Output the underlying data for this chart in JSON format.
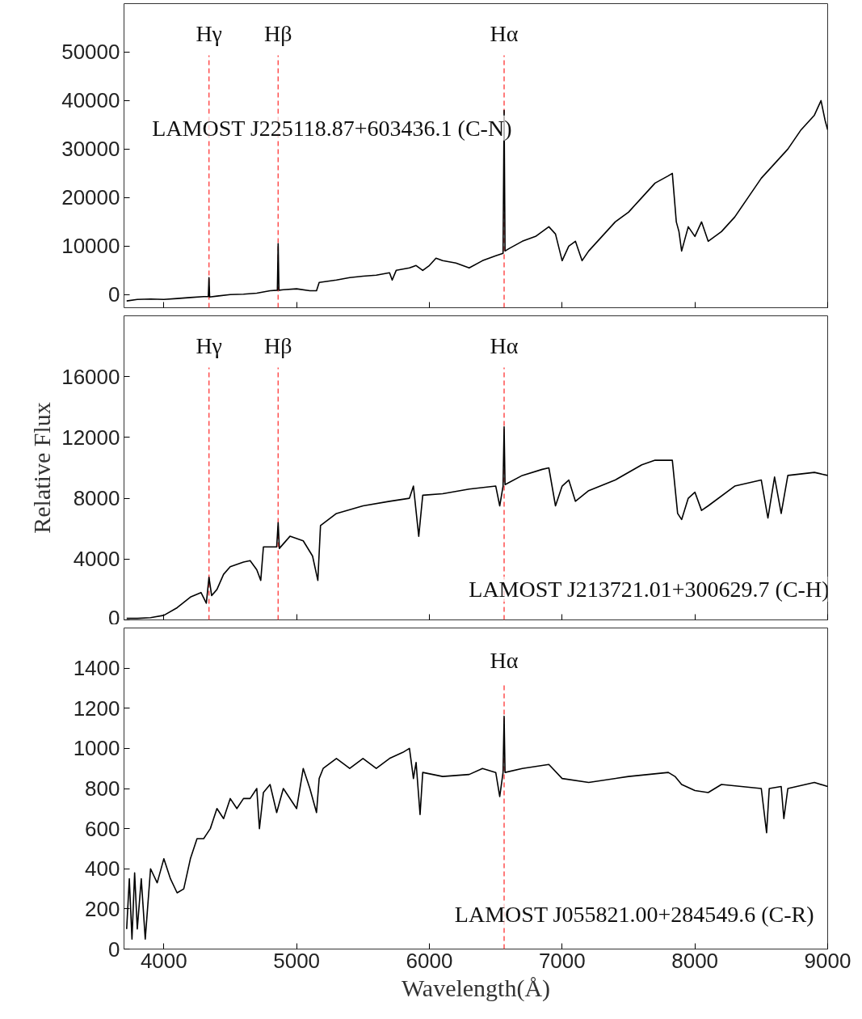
{
  "chart_data": [
    {
      "type": "line",
      "color": "#000000",
      "xlim": [
        3700,
        9000
      ],
      "ylim": [
        -2700,
        60000
      ],
      "yticks": [
        0,
        10000,
        20000,
        30000,
        40000,
        50000
      ],
      "xticks": [
        4000,
        5000,
        6000,
        7000,
        8000,
        9000
      ],
      "tick_labels": "y",
      "grid": false,
      "x": [
        3720,
        3800,
        3900,
        4000,
        4100,
        4200,
        4300,
        4335,
        4340,
        4345,
        4400,
        4500,
        4600,
        4700,
        4800,
        4855,
        4861,
        4867,
        4900,
        5000,
        5100,
        5150,
        5170,
        5300,
        5400,
        5500,
        5600,
        5700,
        5720,
        5750,
        5850,
        5900,
        5950,
        6000,
        6050,
        6100,
        6200,
        6300,
        6400,
        6500,
        6555,
        6563,
        6570,
        6600,
        6700,
        6800,
        6900,
        6950,
        7000,
        7050,
        7100,
        7150,
        7200,
        7300,
        7400,
        7500,
        7600,
        7700,
        7800,
        7830,
        7860,
        7880,
        7900,
        7950,
        8000,
        8050,
        8100,
        8200,
        8300,
        8400,
        8500,
        8600,
        8700,
        8800,
        8900,
        8950,
        8980,
        9000
      ],
      "values": [
        -1300,
        -1000,
        -900,
        -1000,
        -800,
        -600,
        -400,
        -400,
        3500,
        -500,
        -300,
        0,
        100,
        300,
        800,
        900,
        10500,
        900,
        1000,
        1200,
        800,
        800,
        2500,
        3000,
        3500,
        3800,
        4000,
        4500,
        3000,
        5000,
        5500,
        6000,
        5000,
        6000,
        7500,
        7000,
        6500,
        5500,
        7000,
        8000,
        8500,
        38000,
        9000,
        9500,
        11000,
        12000,
        14000,
        12500,
        7000,
        10000,
        11000,
        7000,
        9000,
        12000,
        15000,
        17000,
        20000,
        23000,
        24500,
        25000,
        15000,
        13000,
        9000,
        14000,
        12000,
        15000,
        11000,
        13000,
        16000,
        20000,
        24000,
        27000,
        30000,
        34000,
        37000,
        40000,
        36000,
        34000
      ],
      "ref_lines": [
        {
          "axis": "x",
          "value": 4340,
          "label": "Hγ",
          "color": "#ff4d4d",
          "line_style": "dashed"
        },
        {
          "axis": "x",
          "value": 4861,
          "label": "Hβ",
          "color": "#ff4d4d",
          "line_style": "dashed"
        },
        {
          "axis": "x",
          "value": 6563,
          "label": "Hα",
          "color": "#ff4d4d",
          "line_style": "dashed"
        }
      ],
      "annotations": [
        "LAMOST J225118.87+603436.1 (C-N)"
      ]
    },
    {
      "type": "line",
      "color": "#000000",
      "xlim": [
        3700,
        9000
      ],
      "ylim": [
        0,
        20000
      ],
      "yticks": [
        0,
        4000,
        8000,
        12000,
        16000
      ],
      "xticks": [
        4000,
        5000,
        6000,
        7000,
        8000,
        9000
      ],
      "tick_labels": "y",
      "grid": false,
      "ylabel": "Relative Flux",
      "x": [
        3720,
        3800,
        3900,
        4000,
        4100,
        4200,
        4280,
        4320,
        4340,
        4360,
        4400,
        4450,
        4500,
        4600,
        4650,
        4700,
        4730,
        4750,
        4850,
        4861,
        4870,
        4950,
        5050,
        5120,
        5160,
        5180,
        5300,
        5500,
        5700,
        5850,
        5880,
        5920,
        5950,
        6100,
        6300,
        6500,
        6530,
        6555,
        6563,
        6570,
        6700,
        6850,
        6900,
        6950,
        7000,
        7050,
        7100,
        7200,
        7400,
        7600,
        7700,
        7830,
        7870,
        7900,
        7950,
        8000,
        8050,
        8100,
        8300,
        8500,
        8550,
        8600,
        8650,
        8700,
        8900,
        9000
      ],
      "values": [
        100,
        100,
        150,
        300,
        800,
        1500,
        1800,
        1100,
        2800,
        1600,
        2000,
        3000,
        3500,
        3800,
        3900,
        3300,
        2600,
        4800,
        4800,
        6400,
        4700,
        5500,
        5200,
        4200,
        2600,
        6200,
        7000,
        7500,
        7800,
        8000,
        8800,
        5500,
        8200,
        8300,
        8600,
        8800,
        7500,
        8800,
        12700,
        8900,
        9500,
        9900,
        10000,
        7500,
        8800,
        9200,
        7800,
        8500,
        9200,
        10200,
        10500,
        10500,
        7000,
        6600,
        8000,
        8400,
        7200,
        7500,
        8800,
        9200,
        6700,
        9400,
        7000,
        9500,
        9700,
        9500
      ],
      "ref_lines": [
        {
          "axis": "x",
          "value": 4340,
          "label": "Hγ",
          "color": "#ff4d4d",
          "line_style": "dashed"
        },
        {
          "axis": "x",
          "value": 4861,
          "label": "Hβ",
          "color": "#ff4d4d",
          "line_style": "dashed"
        },
        {
          "axis": "x",
          "value": 6563,
          "label": "Hα",
          "color": "#ff4d4d",
          "line_style": "dashed"
        }
      ],
      "annotations": [
        "LAMOST J213721.01+300629.7 (C-H)"
      ]
    },
    {
      "type": "line",
      "color": "#000000",
      "xlim": [
        3700,
        9000
      ],
      "ylim": [
        0,
        1600
      ],
      "yticks": [
        0,
        200,
        400,
        600,
        800,
        1000,
        1200,
        1400
      ],
      "xticks": [
        4000,
        5000,
        6000,
        7000,
        8000,
        9000
      ],
      "grid": false,
      "xlabel": "Wavelength(Å)",
      "x": [
        3720,
        3740,
        3760,
        3780,
        3800,
        3830,
        3860,
        3900,
        3950,
        4000,
        4050,
        4100,
        4150,
        4200,
        4250,
        4300,
        4350,
        4400,
        4450,
        4500,
        4550,
        4600,
        4650,
        4700,
        4720,
        4750,
        4800,
        4850,
        4900,
        5000,
        5050,
        5100,
        5150,
        5170,
        5200,
        5300,
        5400,
        5500,
        5600,
        5700,
        5800,
        5850,
        5880,
        5900,
        5930,
        5950,
        6100,
        6300,
        6400,
        6500,
        6530,
        6555,
        6563,
        6570,
        6700,
        6900,
        7000,
        7200,
        7500,
        7800,
        7850,
        7900,
        8000,
        8100,
        8200,
        8500,
        8540,
        8560,
        8650,
        8670,
        8700,
        8900,
        9000
      ],
      "values": [
        100,
        350,
        50,
        380,
        100,
        350,
        50,
        400,
        330,
        450,
        350,
        280,
        300,
        450,
        550,
        550,
        600,
        700,
        650,
        750,
        700,
        750,
        750,
        800,
        600,
        780,
        820,
        680,
        800,
        700,
        900,
        800,
        680,
        850,
        900,
        950,
        900,
        950,
        900,
        950,
        980,
        1000,
        850,
        930,
        670,
        880,
        860,
        870,
        900,
        880,
        760,
        880,
        1160,
        880,
        900,
        920,
        850,
        830,
        860,
        880,
        860,
        820,
        790,
        780,
        820,
        800,
        580,
        800,
        810,
        650,
        800,
        830,
        810
      ],
      "ref_lines": [
        {
          "axis": "x",
          "value": 6563,
          "label": "Hα",
          "color": "#ff4d4d",
          "line_style": "dashed"
        }
      ],
      "annotations": [
        "LAMOST J055821.00+284549.6 (C-R)"
      ]
    }
  ]
}
